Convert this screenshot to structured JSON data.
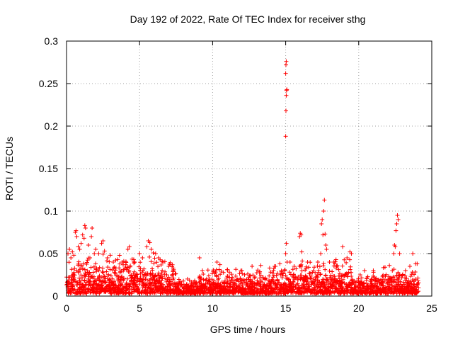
{
  "chart_data": {
    "type": "scatter",
    "title": "Day 192 of 2022, Rate Of TEC Index for receiver sthg",
    "xlabel": "GPS time / hours",
    "ylabel": "ROTI / TECUs",
    "xlim": [
      0,
      25
    ],
    "ylim": [
      0,
      0.3
    ],
    "x_ticks": [
      0,
      5,
      10,
      15,
      20,
      25
    ],
    "x_tick_labels": [
      "0",
      "5",
      "10",
      "15",
      "20",
      "25"
    ],
    "y_ticks": [
      0,
      0.05,
      0.1,
      0.15,
      0.2,
      0.25,
      0.3
    ],
    "y_tick_labels": [
      "0",
      "0.05",
      "0.1",
      "0.15",
      "0.2",
      "0.25",
      "0.3"
    ],
    "grid": true,
    "marker": "+",
    "color": "#ff0000",
    "series": [
      {
        "name": "ROTI",
        "points": [
          [
            0.1,
            0.05
          ],
          [
            0.2,
            0.055
          ],
          [
            0.3,
            0.045
          ],
          [
            0.4,
            0.052
          ],
          [
            0.5,
            0.048
          ],
          [
            0.6,
            0.075
          ],
          [
            0.65,
            0.077
          ],
          [
            0.7,
            0.07
          ],
          [
            0.8,
            0.058
          ],
          [
            0.9,
            0.055
          ],
          [
            1.0,
            0.062
          ],
          [
            1.1,
            0.072
          ],
          [
            1.2,
            0.068
          ],
          [
            1.25,
            0.083
          ],
          [
            1.3,
            0.08
          ],
          [
            1.5,
            0.06
          ],
          [
            1.6,
            0.045
          ],
          [
            1.7,
            0.07
          ],
          [
            1.75,
            0.08
          ],
          [
            1.9,
            0.05
          ],
          [
            2.0,
            0.055
          ],
          [
            2.2,
            0.05
          ],
          [
            2.4,
            0.062
          ],
          [
            2.5,
            0.065
          ],
          [
            2.6,
            0.053
          ],
          [
            2.8,
            0.045
          ],
          [
            3.0,
            0.048
          ],
          [
            3.2,
            0.04
          ],
          [
            3.5,
            0.043
          ],
          [
            3.8,
            0.04
          ],
          [
            4.2,
            0.055
          ],
          [
            4.3,
            0.058
          ],
          [
            4.6,
            0.043
          ],
          [
            5.0,
            0.05
          ],
          [
            5.2,
            0.045
          ],
          [
            5.5,
            0.058
          ],
          [
            5.6,
            0.065
          ],
          [
            5.7,
            0.063
          ],
          [
            5.8,
            0.055
          ],
          [
            6.1,
            0.05
          ],
          [
            6.3,
            0.045
          ],
          [
            6.6,
            0.04
          ],
          [
            7.0,
            0.035
          ],
          [
            7.3,
            0.033
          ],
          [
            9.1,
            0.045
          ],
          [
            9.3,
            0.03
          ],
          [
            10.3,
            0.04
          ],
          [
            10.5,
            0.037
          ],
          [
            11.0,
            0.031
          ],
          [
            12.0,
            0.03
          ],
          [
            12.7,
            0.035
          ],
          [
            13.3,
            0.036
          ],
          [
            13.9,
            0.033
          ],
          [
            14.3,
            0.035
          ],
          [
            14.6,
            0.038
          ],
          [
            14.95,
            0.03
          ],
          [
            15.0,
            0.05
          ],
          [
            15.05,
            0.062
          ],
          [
            15.1,
            0.04
          ],
          [
            15.3,
            0.04
          ],
          [
            15.95,
            0.07
          ],
          [
            16.0,
            0.074
          ],
          [
            16.05,
            0.072
          ],
          [
            16.1,
            0.052
          ],
          [
            16.5,
            0.04
          ],
          [
            17.2,
            0.04
          ],
          [
            17.4,
            0.05
          ],
          [
            17.45,
            0.085
          ],
          [
            17.5,
            0.09
          ],
          [
            17.55,
            0.072
          ],
          [
            17.6,
            0.1
          ],
          [
            17.65,
            0.113
          ],
          [
            17.7,
            0.073
          ],
          [
            17.75,
            0.06
          ],
          [
            17.8,
            0.055
          ],
          [
            18.0,
            0.04
          ],
          [
            18.3,
            0.04
          ],
          [
            18.5,
            0.035
          ],
          [
            18.9,
            0.058
          ],
          [
            19.2,
            0.045
          ],
          [
            19.4,
            0.052
          ],
          [
            19.5,
            0.05
          ],
          [
            20.1,
            0.025
          ],
          [
            20.4,
            0.03
          ],
          [
            21.0,
            0.03
          ],
          [
            21.8,
            0.034
          ],
          [
            22.1,
            0.036
          ],
          [
            22.3,
            0.03
          ],
          [
            22.4,
            0.05
          ],
          [
            22.45,
            0.06
          ],
          [
            22.5,
            0.058
          ],
          [
            22.55,
            0.077
          ],
          [
            22.6,
            0.085
          ],
          [
            22.65,
            0.095
          ],
          [
            22.7,
            0.09
          ],
          [
            22.8,
            0.05
          ],
          [
            23.2,
            0.03
          ],
          [
            23.5,
            0.035
          ],
          [
            23.7,
            0.05
          ],
          [
            23.9,
            0.038
          ],
          [
            24.0,
            0.038
          ],
          [
            15.0,
            0.188
          ],
          [
            15.02,
            0.218
          ],
          [
            15.04,
            0.236
          ],
          [
            15.06,
            0.242
          ],
          [
            15.08,
            0.243
          ],
          [
            15.0,
            0.262
          ],
          [
            15.02,
            0.272
          ],
          [
            15.04,
            0.276
          ]
        ]
      }
    ]
  }
}
